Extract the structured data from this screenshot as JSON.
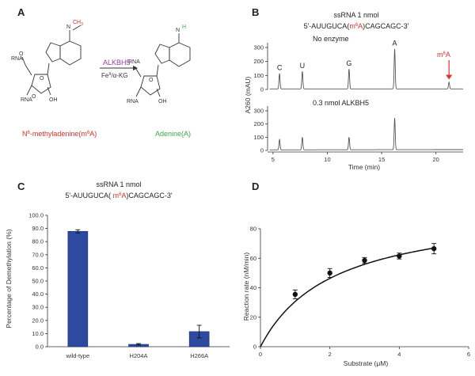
{
  "panels": {
    "a": {
      "letter": "A",
      "substrate_name_parts": [
        "N",
        "6",
        "-methyladenine(m",
        "6",
        "A)"
      ],
      "product_name": "Adenine(A)",
      "enzyme": "ALKBH5",
      "cofactor_parts": [
        "Fe",
        "II",
        "/α-KG"
      ],
      "methyl_group": "CH",
      "methyl_sub": "3",
      "nitrogen": "N",
      "hydrogen": "H",
      "ring_oxygen": "O",
      "oh_label": "OH",
      "rna_label": "RNA",
      "colors": {
        "substrate": "#e0302a",
        "product": "#3fa84a",
        "enzyme": "#9b3aa3"
      }
    },
    "b": {
      "letter": "B",
      "header_line1": "ssRNA  1 nmol",
      "header_line2_parts": [
        "5'-AUUGUCA(",
        "m",
        "6",
        "A",
        ")CAGCAGC-3'"
      ],
      "top_title": "No enzyme",
      "bottom_title": "0.3 nmol ALKBH5",
      "ylabel": "A260 (mAU)",
      "xlabel": "Time (min)",
      "peak_labels": [
        "C",
        "U",
        "G",
        "A"
      ],
      "m6a_label_parts": [
        "m",
        "6",
        "A"
      ],
      "arrow_color": "#e0302a"
    },
    "c": {
      "letter": "C",
      "header_line1": "ssRNA  1 nmol",
      "header_line2_parts": [
        "5'-AUUGUCA( ",
        "m",
        "6",
        "A",
        ")CAGCAGC-3'"
      ]
    },
    "d": {
      "letter": "D"
    }
  },
  "chart_data": [
    {
      "type": "line",
      "panel": "B",
      "chart_kind": "chromatogram",
      "xlabel": "Time (min)",
      "ylabel": "A260 (mAU)",
      "xlim": [
        4.5,
        22.5
      ],
      "x_ticks": [
        5,
        10,
        15,
        20
      ],
      "y_ticks": [
        0,
        100,
        200,
        300
      ],
      "series": [
        {
          "name": "No enzyme",
          "peaks": [
            {
              "label": "C",
              "time": 5.6,
              "height": 110
            },
            {
              "label": "U",
              "time": 7.7,
              "height": 125
            },
            {
              "label": "G",
              "time": 12.0,
              "height": 142
            },
            {
              "label": "A",
              "time": 16.2,
              "height": 285
            },
            {
              "label": "m6A",
              "time": 21.2,
              "height": 48
            }
          ]
        },
        {
          "name": "0.3 nmol ALKBH5",
          "peaks": [
            {
              "label": "C",
              "time": 5.6,
              "height": 78
            },
            {
              "label": "U",
              "time": 7.7,
              "height": 95
            },
            {
              "label": "G",
              "time": 12.0,
              "height": 95
            },
            {
              "label": "A",
              "time": 16.2,
              "height": 240
            }
          ]
        }
      ]
    },
    {
      "type": "bar",
      "panel": "C",
      "categories": [
        "wild-type",
        "H204A",
        "H266A"
      ],
      "values": [
        87.8,
        1.8,
        11.5
      ],
      "errors": [
        1.2,
        0.6,
        4.8
      ],
      "bar_color": "#2e4aa0",
      "ylabel": "Percentage of Demethylation (%)",
      "ylim": [
        0,
        100
      ],
      "y_ticks": [
        "0.0",
        "10.0",
        "20.0",
        "30.0",
        "40.0",
        "50.0",
        "60.0",
        "70.0",
        "80.0",
        "90.0",
        "100.0"
      ]
    },
    {
      "type": "scatter",
      "panel": "D",
      "xlabel": "Substrate (μM)",
      "ylabel": "Reaction rate (nM/min)",
      "xlim": [
        0,
        6
      ],
      "ylim": [
        0,
        80
      ],
      "x_ticks": [
        0,
        2,
        4,
        6
      ],
      "y_ticks": [
        0,
        20,
        40,
        60,
        80
      ],
      "x": [
        1,
        2,
        3,
        4,
        5
      ],
      "y": [
        35.5,
        50.0,
        58.5,
        61.5,
        66.5
      ],
      "errors": [
        3.0,
        3.0,
        2.0,
        2.0,
        3.5
      ],
      "fit_curve": {
        "model": "michaelis-menten",
        "vmax": 95,
        "km": 2.1
      }
    }
  ]
}
